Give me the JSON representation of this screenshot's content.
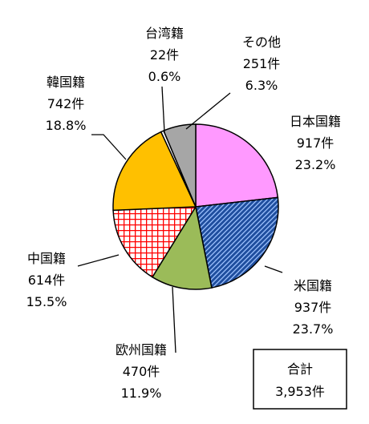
{
  "chart_data": {
    "type": "pie",
    "start": "12 o'clock",
    "direction": "clockwise",
    "slices": [
      {
        "name": "日本国籍",
        "value": 917,
        "count_label": "917件",
        "percent_label": "23.2%",
        "color": "#ff99ff",
        "pattern": "solid"
      },
      {
        "name": "米国籍",
        "value": 937,
        "count_label": "937件",
        "percent_label": "23.7%",
        "color": "#1f4e9e",
        "pattern": "diagonal-hatch"
      },
      {
        "name": "欧州国籍",
        "value": 470,
        "count_label": "470件",
        "percent_label": "11.9%",
        "color": "#9bbb59",
        "pattern": "solid"
      },
      {
        "name": "中国籍",
        "value": 614,
        "count_label": "614件",
        "percent_label": "15.5%",
        "color": "#ff0000",
        "pattern": "grid"
      },
      {
        "name": "韓国籍",
        "value": 742,
        "count_label": "742件",
        "percent_label": "18.8%",
        "color": "#ffc000",
        "pattern": "solid"
      },
      {
        "name": "台湾籍",
        "value": 22,
        "count_label": "22件",
        "percent_label": "0.6%",
        "color": "#ffffff",
        "pattern": "solid"
      },
      {
        "name": "その他",
        "value": 251,
        "count_label": "251件",
        "percent_label": "6.3%",
        "color": "#a6a6a6",
        "pattern": "solid"
      }
    ],
    "total": {
      "label": "合計",
      "value_label": "3,953件"
    }
  }
}
